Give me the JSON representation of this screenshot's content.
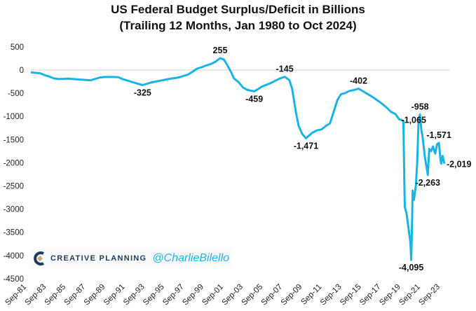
{
  "chart_data": {
    "type": "line",
    "title": "US Federal Budget Surplus/Deficit in Billions",
    "subtitle": "(Trailing 12 Months, Jan 1980 to Oct 2024)",
    "xlabel": "",
    "ylabel": "",
    "ylim": [
      -4500,
      500
    ],
    "yticks": [
      500,
      0,
      -500,
      -1000,
      -1500,
      -2000,
      -2500,
      -3000,
      -3500,
      -4000,
      -4500
    ],
    "xticks": [
      "Sep-81",
      "Sep-83",
      "Sep-85",
      "Sep-87",
      "Sep-89",
      "Sep-91",
      "Sep-93",
      "Sep-95",
      "Sep-97",
      "Sep-99",
      "Sep-01",
      "Sep-03",
      "Sep-05",
      "Sep-07",
      "Sep-09",
      "Sep-11",
      "Sep-13",
      "Sep-15",
      "Sep-17",
      "Sep-19",
      "Sep-21",
      "Sep-23"
    ],
    "grid": false,
    "line_color": "#1ab3e6",
    "series": [
      {
        "x": [
          1980.0,
          1980.5,
          1981.0,
          1981.5,
          1982.0,
          1982.5,
          1983.0,
          1983.5,
          1984.0,
          1985.0,
          1986.0,
          1986.5,
          1987.0,
          1987.5,
          1988.0,
          1989.0,
          1989.5,
          1990.0,
          1990.5,
          1991.0,
          1991.5,
          1992.1,
          1992.5,
          1993.0,
          1994.0,
          1995.0,
          1996.0,
          1996.5,
          1997.0,
          1997.5,
          1998.0,
          1998.5,
          1999.0,
          1999.5,
          2000.0,
          2000.5,
          2000.9,
          2001.3,
          2001.7,
          2002.0,
          2002.5,
          2003.0,
          2003.5,
          2004.2,
          2004.7,
          2005.0,
          2005.5,
          2006.0,
          2006.5,
          2007.0,
          2007.5,
          2008.0,
          2008.3,
          2008.7,
          2009.0,
          2009.4,
          2009.8,
          2010.2,
          2010.5,
          2011.0,
          2011.5,
          2012.0,
          2012.4,
          2012.8,
          2013.2,
          2013.6,
          2014.0,
          2014.5,
          2015.0,
          2015.5,
          2016.0,
          2016.5,
          2017.0,
          2017.5,
          2018.0,
          2018.5,
          2019.0,
          2019.5,
          2019.9,
          2020.2,
          2020.35,
          2020.5,
          2020.7,
          2020.9,
          2021.1,
          2021.2,
          2021.3,
          2021.35,
          2021.5,
          2021.7,
          2021.85,
          2022.0,
          2022.15,
          2022.3,
          2022.4,
          2022.7,
          2023.0,
          2023.15,
          2023.35,
          2023.55,
          2023.8,
          2024.0,
          2024.2,
          2024.35,
          2024.45,
          2024.6,
          2024.8
        ],
        "values": [
          -50,
          -60,
          -70,
          -110,
          -140,
          -180,
          -195,
          -190,
          -185,
          -200,
          -215,
          -220,
          -190,
          -160,
          -150,
          -150,
          -155,
          -200,
          -230,
          -260,
          -290,
          -325,
          -300,
          -270,
          -230,
          -190,
          -160,
          -130,
          -100,
          -40,
          30,
          60,
          100,
          130,
          180,
          255,
          230,
          100,
          -50,
          -180,
          -260,
          -380,
          -430,
          -459,
          -400,
          -360,
          -320,
          -280,
          -230,
          -180,
          -145,
          -220,
          -400,
          -900,
          -1200,
          -1380,
          -1471,
          -1400,
          -1350,
          -1300,
          -1280,
          -1200,
          -1150,
          -900,
          -650,
          -520,
          -500,
          -450,
          -430,
          -402,
          -460,
          -520,
          -580,
          -650,
          -720,
          -800,
          -900,
          -950,
          -1065,
          -1080,
          -1100,
          -2950,
          -3100,
          -3400,
          -3700,
          -4095,
          -3200,
          -2600,
          -2800,
          -2500,
          -2000,
          -1100,
          -958,
          -1300,
          -1400,
          -1900,
          -2263,
          -1700,
          -1750,
          -1650,
          -1800,
          -1600,
          -1571,
          -1900,
          -2019,
          -1850,
          -2019
        ]
      }
    ],
    "annotations": [
      {
        "x": 1992.1,
        "y": -325,
        "text": "-325",
        "pos": "below"
      },
      {
        "x": 2000.5,
        "y": 255,
        "text": "255",
        "pos": "above"
      },
      {
        "x": 2004.2,
        "y": -459,
        "text": "-459",
        "pos": "below"
      },
      {
        "x": 2007.5,
        "y": -145,
        "text": "-145",
        "pos": "above"
      },
      {
        "x": 2009.8,
        "y": -1471,
        "text": "-1,471",
        "pos": "below"
      },
      {
        "x": 2015.5,
        "y": -402,
        "text": "-402",
        "pos": "above"
      },
      {
        "x": 2019.9,
        "y": -1065,
        "text": "-1,065",
        "pos": "right"
      },
      {
        "x": 2022.15,
        "y": -958,
        "text": "-958",
        "pos": "above"
      },
      {
        "x": 2021.2,
        "y": -4095,
        "text": "-4,095",
        "pos": "below"
      },
      {
        "x": 2023.0,
        "y": -2263,
        "text": "-2,263",
        "pos": "below"
      },
      {
        "x": 2024.2,
        "y": -1571,
        "text": "-1,571",
        "pos": "above"
      },
      {
        "x": 2024.8,
        "y": -2019,
        "text": "-2,019",
        "pos": "right"
      }
    ]
  },
  "watermark": {
    "brand": "CREATIVE PLANNING",
    "handle": "@CharlieBilello"
  }
}
